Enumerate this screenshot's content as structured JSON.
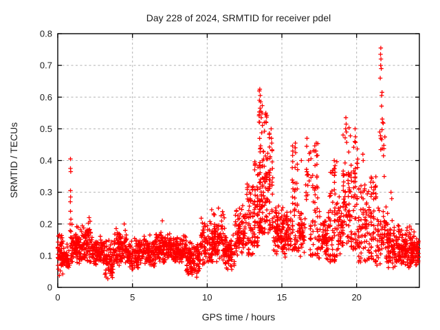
{
  "window": {
    "background": "#ffffff"
  },
  "chart_data": {
    "type": "scatter",
    "title": "Day 228 of 2024, SRMTID for receiver pdel",
    "xlabel": "GPS time / hours",
    "ylabel": "SRMTID / TECUs",
    "xlim": [
      0,
      24.2
    ],
    "ylim": [
      0,
      0.8
    ],
    "xticks": [
      0,
      5,
      10,
      15,
      20
    ],
    "xtick_labels": [
      "0",
      "5",
      "10",
      "15",
      "20"
    ],
    "yticks": [
      0,
      0.1,
      0.2,
      0.3,
      0.4,
      0.5,
      0.6,
      0.7,
      0.8
    ],
    "ytick_labels": [
      "0",
      "0.1",
      "0.2",
      "0.3",
      "0.4",
      "0.5",
      "0.6",
      "0.7",
      "0.8"
    ],
    "grid": true,
    "legend": null,
    "marker": {
      "glyph": "plus",
      "color": "#ff0000",
      "size": 7
    },
    "colors": {
      "frame": "#000000",
      "grid": "#b0b0b0",
      "text": "#1c1c1c",
      "background": "#ffffff"
    },
    "note": "Values read off pixels. envelope_bins rows = [t_start_h, t_end_h, n_points, y_min_TECU, y_max_TECU, shape b=baseline c=column-spikes p=dense-peak s=sparse]; highlight_points = individually visible extreme markers [hour, TECU].",
    "envelope_bins": [
      [
        0.0,
        0.35,
        55,
        0.035,
        0.18,
        "b"
      ],
      [
        0.35,
        0.8,
        55,
        0.055,
        0.14,
        "b"
      ],
      [
        0.8,
        1.0,
        20,
        0.08,
        0.2,
        "c"
      ],
      [
        1.0,
        1.6,
        80,
        0.07,
        0.2,
        "b"
      ],
      [
        1.6,
        2.2,
        75,
        0.075,
        0.215,
        "b"
      ],
      [
        2.2,
        3.0,
        95,
        0.06,
        0.175,
        "b"
      ],
      [
        3.0,
        3.7,
        80,
        0.028,
        0.155,
        "b"
      ],
      [
        3.7,
        4.6,
        105,
        0.06,
        0.19,
        "b"
      ],
      [
        4.6,
        5.4,
        90,
        0.05,
        0.165,
        "b"
      ],
      [
        5.4,
        6.6,
        140,
        0.065,
        0.17,
        "b"
      ],
      [
        6.6,
        7.6,
        115,
        0.07,
        0.19,
        "b"
      ],
      [
        7.6,
        8.6,
        115,
        0.07,
        0.165,
        "b"
      ],
      [
        8.6,
        9.55,
        110,
        0.035,
        0.15,
        "b"
      ],
      [
        9.55,
        10.4,
        95,
        0.07,
        0.23,
        "b"
      ],
      [
        10.4,
        11.2,
        90,
        0.075,
        0.25,
        "b"
      ],
      [
        11.2,
        11.85,
        70,
        0.05,
        0.185,
        "b"
      ],
      [
        11.85,
        12.6,
        85,
        0.095,
        0.26,
        "b"
      ],
      [
        12.6,
        13.1,
        60,
        0.1,
        0.33,
        "c"
      ],
      [
        13.1,
        13.45,
        45,
        0.13,
        0.4,
        "c"
      ],
      [
        13.45,
        13.8,
        75,
        0.17,
        0.62,
        "p"
      ],
      [
        13.8,
        14.1,
        45,
        0.17,
        0.55,
        "p"
      ],
      [
        14.1,
        14.45,
        42,
        0.18,
        0.49,
        "c"
      ],
      [
        14.45,
        15.1,
        75,
        0.1,
        0.28,
        "b"
      ],
      [
        15.1,
        15.65,
        60,
        0.095,
        0.25,
        "b"
      ],
      [
        15.65,
        16.1,
        48,
        0.11,
        0.45,
        "c"
      ],
      [
        16.1,
        16.55,
        50,
        0.085,
        0.25,
        "b"
      ],
      [
        16.55,
        16.85,
        14,
        0.24,
        0.46,
        "s"
      ],
      [
        16.85,
        17.45,
        60,
        0.1,
        0.46,
        "c"
      ],
      [
        17.45,
        18.15,
        75,
        0.08,
        0.25,
        "b"
      ],
      [
        18.15,
        18.75,
        65,
        0.08,
        0.4,
        "c"
      ],
      [
        18.75,
        19.05,
        35,
        0.1,
        0.3,
        "b"
      ],
      [
        19.05,
        19.6,
        70,
        0.13,
        0.52,
        "p"
      ],
      [
        19.6,
        20.1,
        55,
        0.12,
        0.47,
        "c"
      ],
      [
        20.1,
        20.75,
        70,
        0.08,
        0.33,
        "c"
      ],
      [
        20.75,
        21.35,
        65,
        0.08,
        0.35,
        "c"
      ],
      [
        21.35,
        22.1,
        70,
        0.065,
        0.28,
        "b"
      ],
      [
        21.45,
        21.95,
        10,
        0.33,
        0.6,
        "s"
      ],
      [
        22.1,
        22.7,
        70,
        0.05,
        0.22,
        "b"
      ],
      [
        22.7,
        23.6,
        110,
        0.06,
        0.2,
        "b"
      ],
      [
        23.6,
        24.15,
        80,
        0.065,
        0.19,
        "b"
      ]
    ],
    "highlight_points": [
      [
        0.85,
        0.405
      ],
      [
        0.85,
        0.375
      ],
      [
        0.87,
        0.365
      ],
      [
        0.85,
        0.305
      ],
      [
        0.86,
        0.285
      ],
      [
        0.84,
        0.27
      ],
      [
        0.85,
        0.24
      ],
      [
        0.88,
        0.215
      ],
      [
        0.83,
        0.2
      ],
      [
        2.1,
        0.22
      ],
      [
        3.35,
        0.027
      ],
      [
        4.45,
        0.2
      ],
      [
        7.0,
        0.21
      ],
      [
        9.3,
        0.032
      ],
      [
        10.3,
        0.245
      ],
      [
        10.75,
        0.25
      ],
      [
        12.85,
        0.3
      ],
      [
        13.2,
        0.385
      ],
      [
        13.52,
        0.625
      ],
      [
        13.55,
        0.605
      ],
      [
        13.5,
        0.59
      ],
      [
        13.57,
        0.585
      ],
      [
        13.54,
        0.565
      ],
      [
        13.6,
        0.555
      ],
      [
        13.48,
        0.545
      ],
      [
        13.62,
        0.535
      ],
      [
        13.9,
        0.545
      ],
      [
        13.95,
        0.52
      ],
      [
        14.28,
        0.5
      ],
      [
        14.3,
        0.47
      ],
      [
        14.32,
        0.455
      ],
      [
        15.9,
        0.455
      ],
      [
        15.88,
        0.44
      ],
      [
        15.92,
        0.425
      ],
      [
        16.3,
        0.4
      ],
      [
        16.68,
        0.47
      ],
      [
        16.66,
        0.445
      ],
      [
        17.3,
        0.455
      ],
      [
        17.28,
        0.43
      ],
      [
        17.32,
        0.415
      ],
      [
        18.5,
        0.4
      ],
      [
        18.52,
        0.375
      ],
      [
        19.28,
        0.535
      ],
      [
        19.3,
        0.515
      ],
      [
        19.26,
        0.5
      ],
      [
        19.32,
        0.49
      ],
      [
        19.9,
        0.5
      ],
      [
        19.92,
        0.475
      ],
      [
        19.88,
        0.46
      ],
      [
        20.42,
        0.42
      ],
      [
        20.44,
        0.4
      ],
      [
        21.62,
        0.755
      ],
      [
        21.6,
        0.735
      ],
      [
        21.63,
        0.72
      ],
      [
        21.61,
        0.7
      ],
      [
        21.65,
        0.69
      ],
      [
        21.58,
        0.66
      ],
      [
        21.7,
        0.615
      ],
      [
        21.68,
        0.605
      ],
      [
        21.75,
        0.52
      ],
      [
        21.55,
        0.49
      ],
      [
        21.6,
        0.478
      ],
      [
        21.62,
        0.47
      ],
      [
        21.8,
        0.415
      ],
      [
        21.85,
        0.35
      ],
      [
        22.3,
        0.3
      ],
      [
        22.35,
        0.28
      ]
    ]
  }
}
